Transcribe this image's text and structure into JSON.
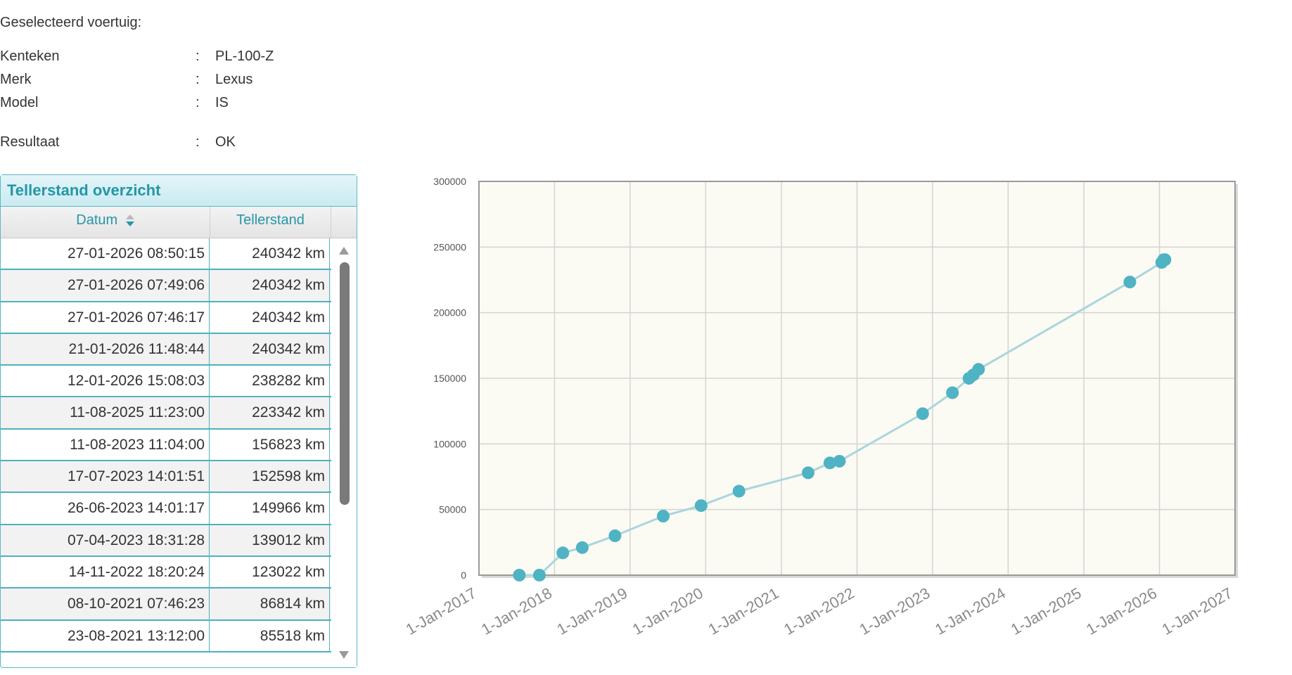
{
  "vehicle": {
    "heading": "Geselecteerd voertuig:",
    "colon": ":",
    "fields": [
      {
        "label": "Kenteken",
        "value": "PL-100-Z"
      },
      {
        "label": "Merk",
        "value": "Lexus"
      },
      {
        "label": "Model",
        "value": "IS"
      }
    ],
    "result": {
      "label": "Resultaat",
      "value": "OK"
    }
  },
  "grid": {
    "caption": "Tellerstand overzicht",
    "columns": {
      "datum": "Datum",
      "tellerstand": "Tellerstand"
    },
    "rows": [
      {
        "datum": "27-01-2026 08:50:15",
        "tellerstand": "240342 km"
      },
      {
        "datum": "27-01-2026 07:49:06",
        "tellerstand": "240342 km"
      },
      {
        "datum": "27-01-2026 07:46:17",
        "tellerstand": "240342 km"
      },
      {
        "datum": "21-01-2026 11:48:44",
        "tellerstand": "240342 km"
      },
      {
        "datum": "12-01-2026 15:08:03",
        "tellerstand": "238282 km"
      },
      {
        "datum": "11-08-2025 11:23:00",
        "tellerstand": "223342 km"
      },
      {
        "datum": "11-08-2023 11:04:00",
        "tellerstand": "156823 km"
      },
      {
        "datum": "17-07-2023 14:01:51",
        "tellerstand": "152598 km"
      },
      {
        "datum": "26-06-2023 14:01:17",
        "tellerstand": "149966 km"
      },
      {
        "datum": "07-04-2023 18:31:28",
        "tellerstand": "139012 km"
      },
      {
        "datum": "14-11-2022 18:20:24",
        "tellerstand": "123022 km"
      },
      {
        "datum": "08-10-2021 07:46:23",
        "tellerstand": "86814 km"
      },
      {
        "datum": "23-08-2021 13:12:00",
        "tellerstand": "85518 km"
      }
    ]
  },
  "chart_data": {
    "type": "line",
    "x_type": "date",
    "xlim": [
      "2017-01-01",
      "2027-01-01"
    ],
    "ylim": [
      0,
      300000
    ],
    "x_ticks": [
      "1-Jan-2017",
      "1-Jan-2018",
      "1-Jan-2019",
      "1-Jan-2020",
      "1-Jan-2021",
      "1-Jan-2022",
      "1-Jan-2023",
      "1-Jan-2024",
      "1-Jan-2025",
      "1-Jan-2026",
      "1-Jan-2027"
    ],
    "x_tick_dates": [
      "2017-01-01",
      "2018-01-01",
      "2019-01-01",
      "2020-01-01",
      "2021-01-01",
      "2022-01-01",
      "2023-01-01",
      "2024-01-01",
      "2025-01-01",
      "2026-01-01",
      "2027-01-01"
    ],
    "y_ticks": [
      0,
      50000,
      100000,
      150000,
      200000,
      250000,
      300000
    ],
    "grid": true,
    "colors": {
      "line": "#a9d6de",
      "marker": "#4fb3c4",
      "plot_bg": "#fbfaf3",
      "grid": "#d4d4d4",
      "frame": "#9a9a9a"
    },
    "points": [
      {
        "x": "2017-07-15",
        "y": 0
      },
      {
        "x": "2017-10-20",
        "y": 0
      },
      {
        "x": "2018-02-10",
        "y": 17000
      },
      {
        "x": "2018-05-15",
        "y": 21000
      },
      {
        "x": "2018-10-20",
        "y": 30000
      },
      {
        "x": "2019-06-10",
        "y": 45000
      },
      {
        "x": "2019-12-10",
        "y": 53000
      },
      {
        "x": "2020-06-10",
        "y": 64000
      },
      {
        "x": "2021-05-10",
        "y": 78000
      },
      {
        "x": "2021-08-23",
        "y": 85518
      },
      {
        "x": "2021-10-08",
        "y": 86814
      },
      {
        "x": "2022-11-14",
        "y": 123022
      },
      {
        "x": "2023-04-07",
        "y": 139012
      },
      {
        "x": "2023-06-26",
        "y": 149966
      },
      {
        "x": "2023-07-17",
        "y": 152598
      },
      {
        "x": "2023-08-11",
        "y": 156823
      },
      {
        "x": "2025-08-11",
        "y": 223342
      },
      {
        "x": "2026-01-12",
        "y": 238282
      },
      {
        "x": "2026-01-21",
        "y": 240342
      },
      {
        "x": "2026-01-27",
        "y": 240342
      },
      {
        "x": "2026-01-27",
        "y": 240342
      },
      {
        "x": "2026-01-27",
        "y": 240342
      }
    ]
  }
}
